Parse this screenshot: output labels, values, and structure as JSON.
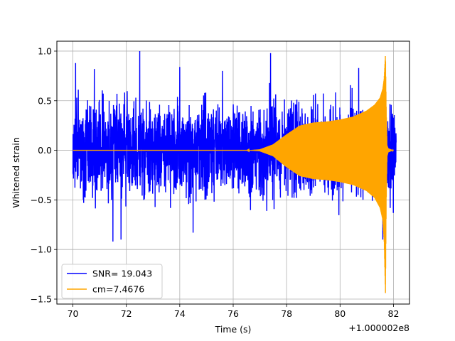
{
  "chart_data": {
    "type": "line",
    "xlabel": "Time (s)",
    "ylabel": "Whitened strain",
    "x_offset_label": "+1.000002e8",
    "xlim": [
      69.4,
      82.6
    ],
    "ylim": [
      -1.55,
      1.1
    ],
    "x_ticks": [
      70,
      72,
      74,
      76,
      78,
      80,
      82
    ],
    "x_tick_labels": [
      "70",
      "72",
      "74",
      "76",
      "78",
      "80",
      "82"
    ],
    "y_ticks": [
      1.0,
      0.5,
      0.0,
      -0.5,
      -1.0,
      -1.5
    ],
    "y_tick_labels": [
      "1.0",
      "0.5",
      "0.0",
      "−0.5",
      "−1.0",
      "−1.5"
    ],
    "grid": true,
    "legend_position": "lower-left",
    "series": [
      {
        "name": "SNR= 19.043",
        "color": "#0000ff",
        "style": "noise",
        "x_range": [
          70.0,
          82.1
        ],
        "typical_amplitude": 0.55,
        "peak_values": [
          {
            "x": 70.1,
            "y": 0.88
          },
          {
            "x": 70.1,
            "y": -0.92
          },
          {
            "x": 70.8,
            "y": 0.82
          },
          {
            "x": 71.5,
            "y": -0.92
          },
          {
            "x": 72.5,
            "y": 1.0
          },
          {
            "x": 71.8,
            "y": -0.9
          },
          {
            "x": 74.0,
            "y": 0.84
          },
          {
            "x": 74.5,
            "y": -0.83
          },
          {
            "x": 75.6,
            "y": 0.8
          },
          {
            "x": 77.4,
            "y": 0.98
          },
          {
            "x": 80.7,
            "y": 0.83
          },
          {
            "x": 81.7,
            "y": 0.87
          },
          {
            "x": 81.6,
            "y": -0.9
          }
        ]
      },
      {
        "name": "cm=7.4676",
        "color": "#ffa500",
        "style": "chirp",
        "envelope_x": [
          70.0,
          76.5,
          77.0,
          77.5,
          78.0,
          78.5,
          79.0,
          79.5,
          80.0,
          80.5,
          81.0,
          81.3,
          81.5,
          81.6,
          81.65,
          81.7,
          81.73,
          81.76,
          81.8,
          82.0
        ],
        "envelope_y_upper": [
          0.0,
          0.0,
          0.01,
          0.06,
          0.16,
          0.25,
          0.28,
          0.29,
          0.31,
          0.34,
          0.4,
          0.46,
          0.53,
          0.62,
          0.72,
          0.97,
          0.4,
          0.05,
          0.02,
          0.0
        ],
        "envelope_y_lower": [
          0.0,
          0.0,
          -0.01,
          -0.06,
          -0.17,
          -0.26,
          -0.29,
          -0.3,
          -0.32,
          -0.35,
          -0.41,
          -0.48,
          -0.58,
          -0.7,
          -0.9,
          -1.44,
          -0.5,
          -0.06,
          -0.02,
          0.0
        ]
      }
    ]
  }
}
